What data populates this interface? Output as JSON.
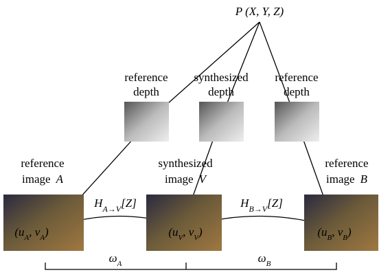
{
  "point": [
    {
      "t": "P"
    },
    {
      "t": "  (X, Y, Z)"
    }
  ],
  "depths": [
    {
      "line1": "reference",
      "line2": "depth"
    },
    {
      "line1": "synthesized",
      "line2": "depth"
    },
    {
      "line1": "reference",
      "line2": "depth"
    }
  ],
  "images": [
    {
      "line1": "reference",
      "line2": "image",
      "symbol": "A",
      "coords": [
        {
          "t": "(u"
        },
        {
          "t": "A",
          "sub": true
        },
        {
          "t": ", v"
        },
        {
          "t": "A",
          "sub": true
        },
        {
          "t": ")"
        }
      ]
    },
    {
      "line1": "synthesized",
      "line2": "image",
      "symbol": "V",
      "coords": [
        {
          "t": "(u"
        },
        {
          "t": "V",
          "sub": true
        },
        {
          "t": ", v"
        },
        {
          "t": "V",
          "sub": true
        },
        {
          "t": ")"
        }
      ]
    },
    {
      "line1": "reference",
      "line2": "image",
      "symbol": "B",
      "coords": [
        {
          "t": "(u"
        },
        {
          "t": "B",
          "sub": true
        },
        {
          "t": ", v"
        },
        {
          "t": "B",
          "sub": true
        },
        {
          "t": ")"
        }
      ]
    }
  ],
  "warps": [
    [
      {
        "t": "H"
      },
      {
        "t": "A→V",
        "sub": true
      },
      {
        "t": "[Z]"
      }
    ],
    [
      {
        "t": "H"
      },
      {
        "t": "B→V",
        "sub": true
      },
      {
        "t": "[Z]"
      }
    ]
  ],
  "weights": [
    [
      {
        "t": "ω"
      },
      {
        "t": "A",
        "sub": true
      }
    ],
    [
      {
        "t": "ω"
      },
      {
        "t": "B",
        "sub": true
      }
    ]
  ]
}
